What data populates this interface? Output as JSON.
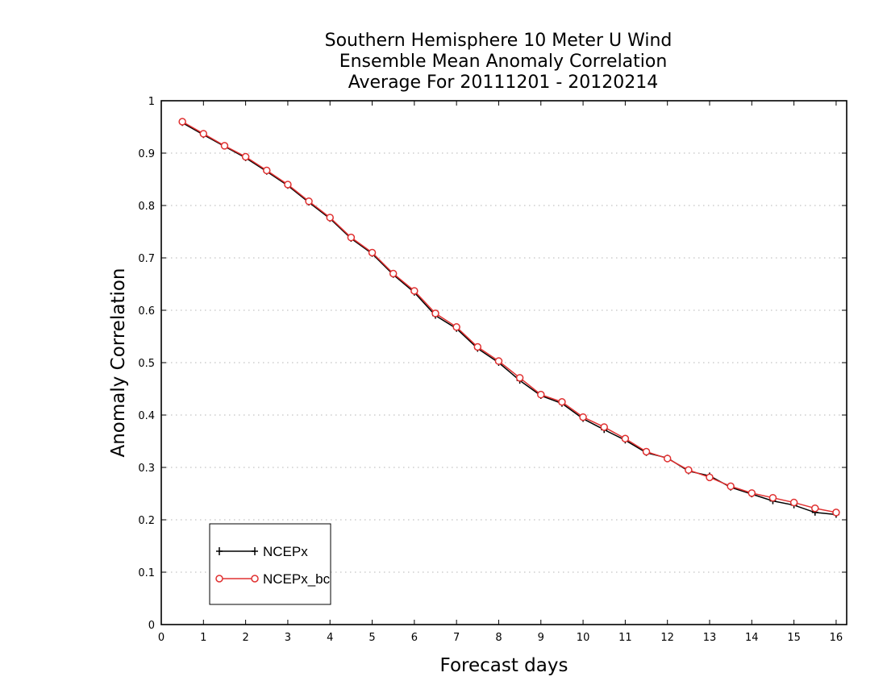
{
  "chart_data": {
    "type": "line",
    "title": [
      "Southern Hemisphere 10 Meter U Wind",
      "Ensemble Mean Anomaly Correlation",
      "Average For 20111201 - 20120214"
    ],
    "xlabel": "Forecast days",
    "ylabel": "Anomaly Correlation",
    "xlim": [
      0,
      16.25
    ],
    "ylim": [
      0,
      1
    ],
    "xticks": [
      "0",
      "1",
      "2",
      "3",
      "4",
      "5",
      "6",
      "7",
      "8",
      "9",
      "10",
      "11",
      "12",
      "13",
      "14",
      "15",
      "16"
    ],
    "yticks": [
      "0",
      "0.1",
      "0.2",
      "0.3",
      "0.4",
      "0.5",
      "0.6",
      "0.7",
      "0.8",
      "0.9",
      "1"
    ],
    "grid": "horizontal-dotted",
    "legend_position": "bottom-left",
    "x": [
      0.5,
      1,
      1.5,
      2,
      2.5,
      3,
      3.5,
      4,
      4.5,
      5,
      5.5,
      6,
      6.5,
      7,
      7.5,
      8,
      8.5,
      9,
      9.5,
      10,
      10.5,
      11,
      11.5,
      12,
      12.5,
      13,
      13.5,
      14,
      14.5,
      15,
      15.5,
      16
    ],
    "series": [
      {
        "name": "NCEPx",
        "color": "#000000",
        "marker": "plus",
        "values": [
          0.958,
          0.935,
          0.913,
          0.891,
          0.865,
          0.838,
          0.806,
          0.775,
          0.737,
          0.708,
          0.668,
          0.634,
          0.59,
          0.565,
          0.527,
          0.5,
          0.466,
          0.437,
          0.422,
          0.393,
          0.372,
          0.352,
          0.328,
          0.318,
          0.293,
          0.284,
          0.262,
          0.249,
          0.236,
          0.228,
          0.214,
          0.21
        ]
      },
      {
        "name": "NCEPx_bc",
        "color": "#e03030",
        "marker": "circle",
        "values": [
          0.96,
          0.937,
          0.914,
          0.893,
          0.867,
          0.84,
          0.808,
          0.777,
          0.739,
          0.71,
          0.67,
          0.637,
          0.594,
          0.568,
          0.53,
          0.503,
          0.471,
          0.439,
          0.425,
          0.396,
          0.377,
          0.355,
          0.33,
          0.317,
          0.295,
          0.281,
          0.264,
          0.251,
          0.242,
          0.233,
          0.222,
          0.214
        ]
      }
    ]
  }
}
